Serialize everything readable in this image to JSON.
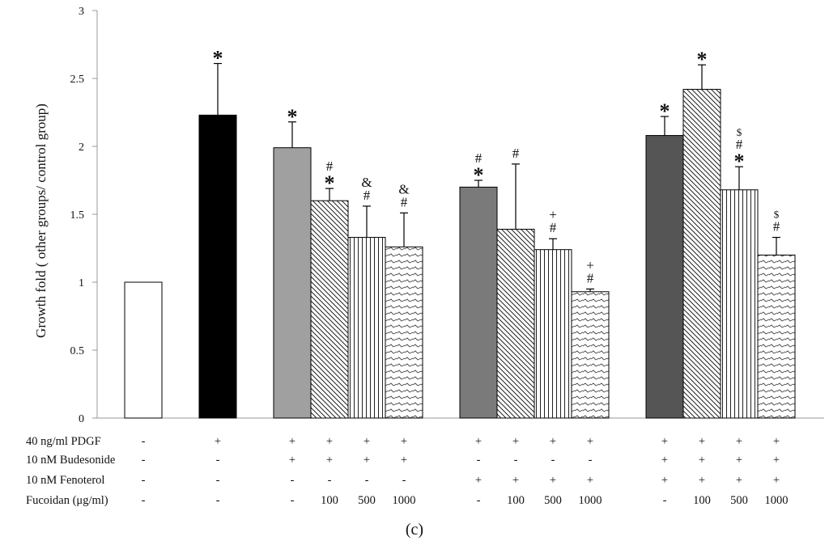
{
  "chart_data": {
    "type": "bar",
    "title": "",
    "caption": "(c)",
    "ylabel": "Growth fold ( other groups/ control group)",
    "ylim": [
      0,
      3
    ],
    "yticks": [
      "0",
      "0.5",
      "1",
      "1.5",
      "2",
      "2.5",
      "3"
    ],
    "bars": [
      {
        "value": 1.0,
        "error": 0,
        "fill": "#ffffff",
        "annotations": []
      },
      {
        "value": 2.23,
        "error": 0.38,
        "fill": "#000000",
        "annotations": [
          "*"
        ]
      },
      {
        "value": 1.99,
        "error": 0.19,
        "fill": "#a0a0a0",
        "annotations": [
          "*"
        ]
      },
      {
        "value": 1.6,
        "error": 0.09,
        "fill": "diagonal",
        "annotations": [
          "*",
          "#"
        ]
      },
      {
        "value": 1.33,
        "error": 0.23,
        "fill": "vertical",
        "annotations": [
          "#",
          "&"
        ]
      },
      {
        "value": 1.26,
        "error": 0.25,
        "fill": "wave",
        "annotations": [
          "#",
          "&"
        ]
      },
      {
        "value": 1.7,
        "error": 0.05,
        "fill": "#7a7a7a",
        "annotations": [
          "*",
          "#"
        ]
      },
      {
        "value": 1.39,
        "error": 0.48,
        "fill": "diagonal",
        "annotations": [
          "#"
        ]
      },
      {
        "value": 1.24,
        "error": 0.08,
        "fill": "vertical",
        "annotations": [
          "#",
          "+"
        ]
      },
      {
        "value": 0.93,
        "error": 0.02,
        "fill": "wave",
        "annotations": [
          "#",
          "+"
        ]
      },
      {
        "value": 2.08,
        "error": 0.14,
        "fill": "#555555",
        "annotations": [
          "*"
        ]
      },
      {
        "value": 2.42,
        "error": 0.18,
        "fill": "diagonal",
        "annotations": [
          "*"
        ]
      },
      {
        "value": 1.68,
        "error": 0.17,
        "fill": "vertical",
        "annotations": [
          "*",
          "#",
          "$"
        ]
      },
      {
        "value": 1.2,
        "error": 0.13,
        "fill": "wave",
        "annotations": [
          "#",
          "$"
        ]
      }
    ],
    "conditions": [
      {
        "label": "40 ng/ml PDGF",
        "values": [
          "-",
          "+",
          "+",
          "+",
          "+",
          "+",
          "+",
          "+",
          "+",
          "+",
          "+",
          "+",
          "+",
          "+"
        ]
      },
      {
        "label": "10 nM Budesonide",
        "values": [
          "-",
          "-",
          "+",
          "+",
          "+",
          "+",
          "-",
          "-",
          "-",
          "-",
          "+",
          "+",
          "+",
          "+"
        ]
      },
      {
        "label": "10 nM Fenoterol",
        "values": [
          "-",
          "-",
          "-",
          "-",
          "-",
          "-",
          "+",
          "+",
          "+",
          "+",
          "+",
          "+",
          "+",
          "+"
        ]
      },
      {
        "label": "Fucoidan (μg/ml)",
        "values": [
          "-",
          "-",
          "-",
          "100",
          "500",
          "1000",
          "-",
          "100",
          "500",
          "1000",
          "-",
          "100",
          "500",
          "1000"
        ]
      }
    ],
    "grid": false,
    "legend": "none"
  }
}
